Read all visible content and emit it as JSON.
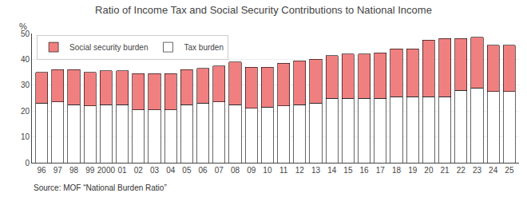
{
  "chart_data": {
    "type": "bar",
    "stacked": true,
    "title": "Ratio of Income Tax and Social Security Contributions to National Income",
    "y_label": "%",
    "annotations": [
      "Source: MOF “National Burden Ratio”"
    ],
    "categories": [
      "96",
      "97",
      "98",
      "99",
      "2000",
      "01",
      "02",
      "03",
      "04",
      "05",
      "06",
      "07",
      "08",
      "09",
      "10",
      "11",
      "12",
      "13",
      "14",
      "15",
      "16",
      "17",
      "18",
      "19",
      "20",
      "21",
      "22",
      "23",
      "24",
      "25"
    ],
    "series": [
      {
        "name": "Tax burden",
        "color": "#ffffff",
        "values": [
          23.0,
          23.5,
          22.5,
          22.0,
          22.5,
          22.5,
          20.5,
          20.5,
          20.5,
          22.5,
          23.0,
          23.5,
          22.5,
          21.0,
          21.5,
          22.0,
          22.5,
          23.0,
          25.0,
          25.0,
          25.0,
          25.0,
          25.5,
          25.5,
          25.5,
          25.5,
          28.0,
          29.0,
          27.5,
          27.5
        ]
      },
      {
        "name": "Social security burden",
        "color": "#f08080",
        "values": [
          12.0,
          12.5,
          13.5,
          13.0,
          13.0,
          13.0,
          14.0,
          14.0,
          14.0,
          13.5,
          13.5,
          14.0,
          16.5,
          16.0,
          15.5,
          16.5,
          17.0,
          17.0,
          16.5,
          17.0,
          17.0,
          17.5,
          18.5,
          18.5,
          22.0,
          22.5,
          20.0,
          19.5,
          18.0,
          18.0
        ]
      }
    ],
    "ylim": [
      0,
      50
    ],
    "yticks": [
      0,
      10,
      20,
      30,
      40,
      50
    ],
    "grid": true,
    "legend": "upper left"
  }
}
